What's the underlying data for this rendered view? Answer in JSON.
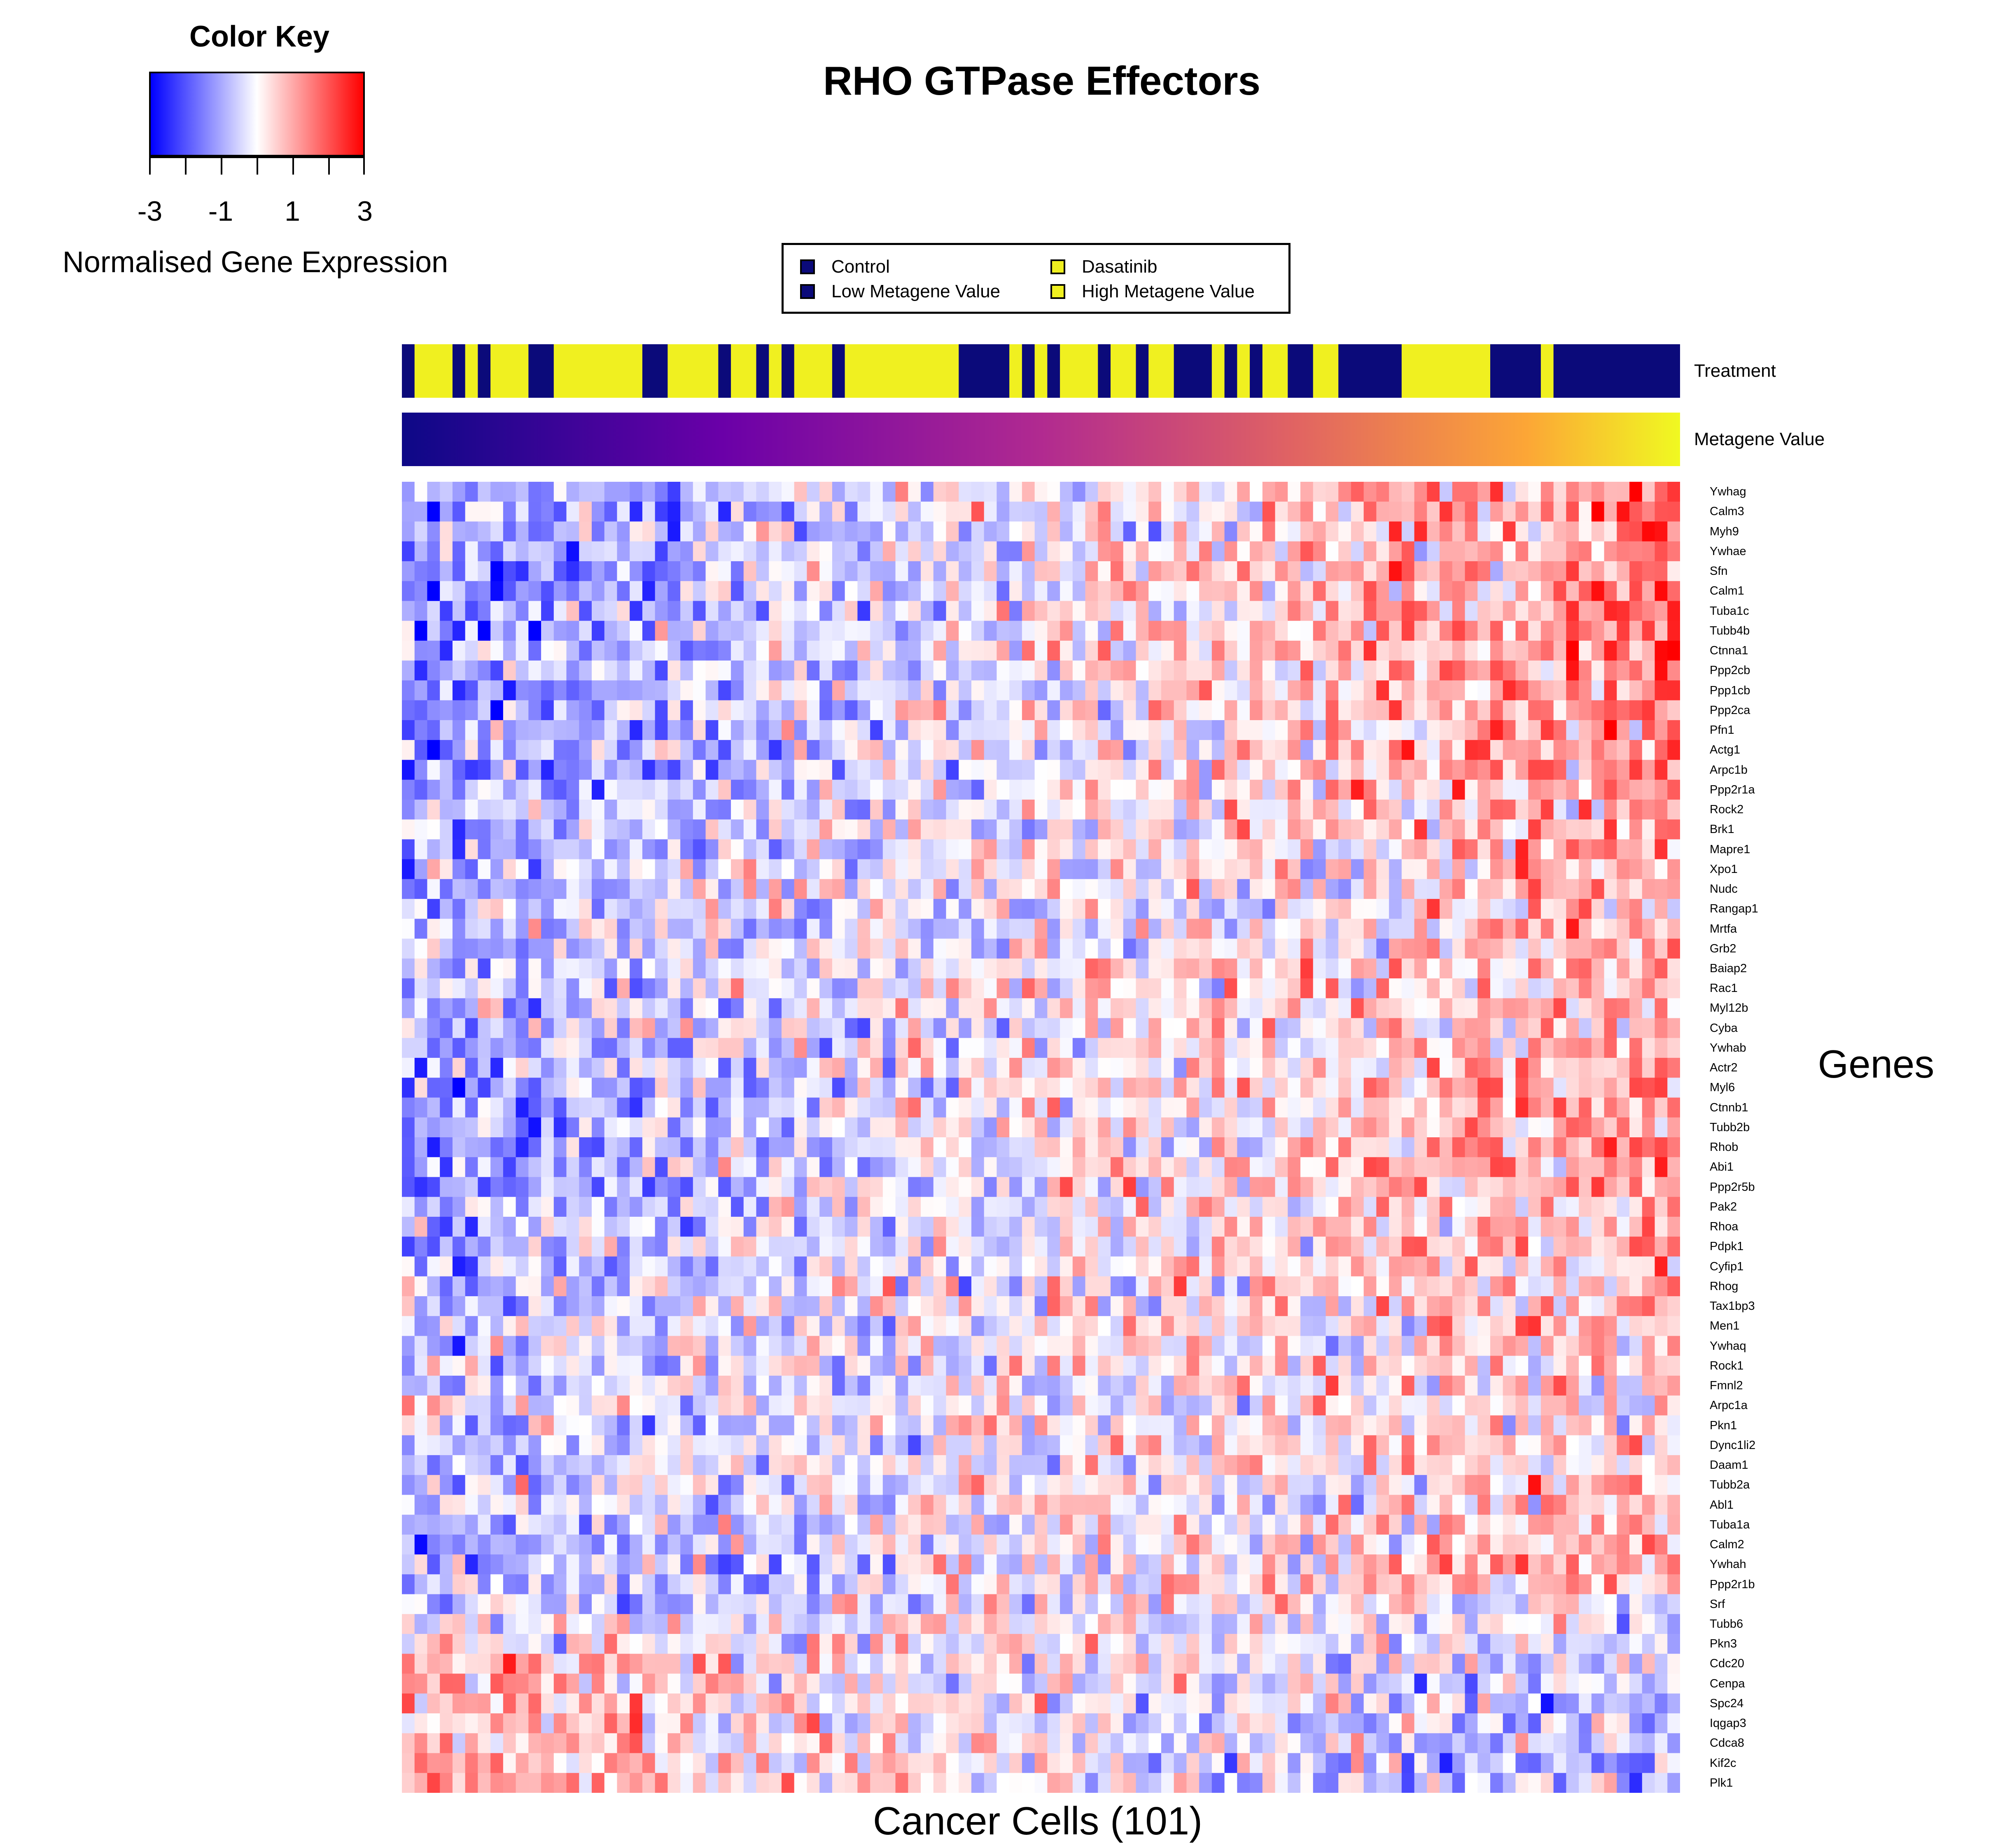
{
  "chart_data": {
    "type": "heatmap",
    "title": "RHO GTPase Effectors",
    "xlabel": "Cancer Cells (101)",
    "ylabel": "Genes",
    "color_key": {
      "title": "Color Key",
      "label": "Normalised Gene Expression",
      "range": [
        -3,
        3
      ],
      "tick_labels": [
        "-3",
        "-1",
        "1",
        "3"
      ],
      "low_color": "#0000ff",
      "mid_color": "#ffffff",
      "high_color": "#ff0000"
    },
    "legend": {
      "placement": "top-center",
      "entries": [
        {
          "label": "Control",
          "color": "#0b0a7a"
        },
        {
          "label": "Dasatinib",
          "color": "#f0f020"
        },
        {
          "label": "Low Metagene Value",
          "color": "#0b0a7a"
        },
        {
          "label": "High Metagene Value",
          "color": "#f0f020"
        }
      ]
    },
    "annotation_tracks": [
      {
        "name": "Treatment",
        "colors": {
          "Control": "#0b0a7a",
          "Dasatinib": "#f0f020"
        }
      },
      {
        "name": "Metagene Value",
        "low_color": "#0d0887",
        "high_color": "#f0f921"
      }
    ],
    "n_cells": 101,
    "treatment": [
      "C",
      "D",
      "D",
      "D",
      "C",
      "D",
      "C",
      "D",
      "D",
      "D",
      "C",
      "C",
      "D",
      "D",
      "D",
      "D",
      "D",
      "D",
      "D",
      "C",
      "C",
      "D",
      "D",
      "D",
      "D",
      "C",
      "D",
      "D",
      "C",
      "D",
      "C",
      "D",
      "D",
      "D",
      "C",
      "D",
      "D",
      "D",
      "D",
      "D",
      "D",
      "D",
      "D",
      "D",
      "C",
      "C",
      "C",
      "C",
      "D",
      "C",
      "D",
      "C",
      "D",
      "D",
      "D",
      "C",
      "D",
      "D",
      "C",
      "D",
      "D",
      "C",
      "C",
      "C",
      "D",
      "C",
      "D",
      "C",
      "D",
      "D",
      "C",
      "C",
      "D",
      "D",
      "C",
      "C",
      "C",
      "C",
      "C",
      "D",
      "D",
      "D",
      "D",
      "D",
      "D",
      "D",
      "C",
      "C",
      "C",
      "C",
      "D",
      "C",
      "C",
      "C",
      "C",
      "C",
      "C",
      "C",
      "C",
      "C",
      "C"
    ],
    "genes": [
      "Ywhag",
      "Calm3",
      "Myh9",
      "Ywhae",
      "Sfn",
      "Calm1",
      "Tuba1c",
      "Tubb4b",
      "Ctnna1",
      "Ppp2cb",
      "Ppp1cb",
      "Ppp2ca",
      "Pfn1",
      "Actg1",
      "Arpc1b",
      "Ppp2r1a",
      "Rock2",
      "Brk1",
      "Mapre1",
      "Xpo1",
      "Nudc",
      "Rangap1",
      "Mrtfa",
      "Grb2",
      "Baiap2",
      "Rac1",
      "Myl12b",
      "Cyba",
      "Ywhab",
      "Actr2",
      "Myl6",
      "Ctnnb1",
      "Tubb2b",
      "Rhob",
      "Abi1",
      "Ppp2r5b",
      "Pak2",
      "Rhoa",
      "Pdpk1",
      "Cyfip1",
      "Rhog",
      "Tax1bp3",
      "Men1",
      "Ywhaq",
      "Rock1",
      "Fmnl2",
      "Arpc1a",
      "Pkn1",
      "Dync1li2",
      "Daam1",
      "Tubb2a",
      "Abl1",
      "Tuba1a",
      "Calm2",
      "Ywhah",
      "Ppp2r1b",
      "Srf",
      "Tubb6",
      "Pkn3",
      "Cdc20",
      "Cenpa",
      "Spc24",
      "Iqgap3",
      "Cdca8",
      "Kif2c",
      "Plk1"
    ],
    "row_trend": [
      0.62,
      0.64,
      0.6,
      0.62,
      0.68,
      0.66,
      0.64,
      0.66,
      0.62,
      0.62,
      0.6,
      0.6,
      0.62,
      0.62,
      0.62,
      0.6,
      0.5,
      0.46,
      0.4,
      0.42,
      0.44,
      0.4,
      0.38,
      0.36,
      0.4,
      0.42,
      0.44,
      0.42,
      0.42,
      0.4,
      0.52,
      0.56,
      0.58,
      0.6,
      0.56,
      0.52,
      0.44,
      0.42,
      0.42,
      0.4,
      0.3,
      0.3,
      0.28,
      0.26,
      0.24,
      0.22,
      0.2,
      0.22,
      0.26,
      0.32,
      0.3,
      0.3,
      0.36,
      0.4,
      0.44,
      0.38,
      0.1,
      -0.1,
      -0.2,
      -0.3,
      -0.36,
      -0.36,
      -0.36,
      -0.38,
      -0.4,
      -0.42
    ]
  }
}
